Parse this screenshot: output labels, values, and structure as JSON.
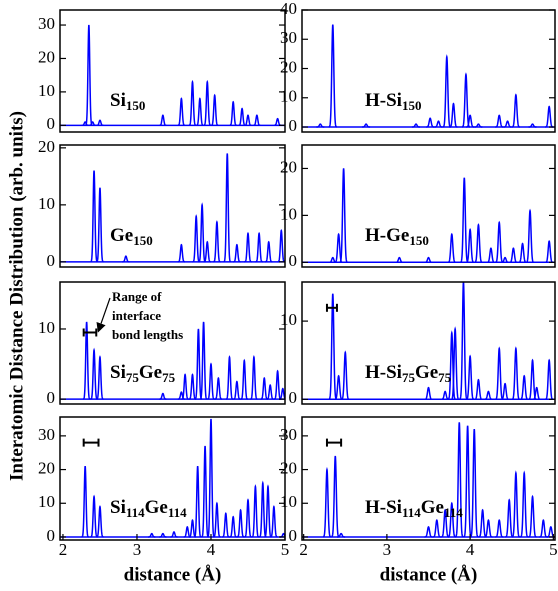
{
  "ylabel": "Interatomic Distance Distribution (arb. units)",
  "chart_data": [
    {
      "type": "peaks",
      "label": [
        "Si",
        "150"
      ],
      "color": "#0000ff",
      "x": [
        2.3,
        2.35,
        2.4,
        2.5,
        3.35,
        3.6,
        3.75,
        3.85,
        3.95,
        4.05,
        4.3,
        4.42,
        4.5,
        4.62,
        4.9
      ],
      "values": [
        1,
        30,
        1,
        1.5,
        3,
        8,
        13,
        8,
        13,
        9,
        7,
        5,
        3,
        3,
        2
      ],
      "xlim": [
        1.96,
        5.0
      ],
      "ylim": [
        -2,
        34.5
      ],
      "yticks": [
        0,
        10,
        20,
        30
      ]
    },
    {
      "type": "peaks",
      "label": [
        "H-Si",
        "150"
      ],
      "color": "#0000ff",
      "x": [
        2.2,
        2.35,
        2.75,
        3.35,
        3.52,
        3.62,
        3.72,
        3.8,
        3.95,
        4.0,
        4.1,
        4.35,
        4.45,
        4.55,
        4.75,
        4.95
      ],
      "values": [
        1,
        35,
        1,
        1,
        3,
        2,
        24,
        8,
        18,
        4,
        1,
        4,
        2,
        11,
        1,
        7
      ],
      "xlim": [
        1.98,
        5.02
      ],
      "ylim": [
        -1.7,
        40
      ],
      "yticks": [
        0,
        10,
        20,
        30,
        40
      ]
    },
    {
      "type": "peaks",
      "label": [
        "Ge",
        "150"
      ],
      "color": "#0000ff",
      "x": [
        2.42,
        2.5,
        2.85,
        3.6,
        3.8,
        3.88,
        3.95,
        4.08,
        4.22,
        4.35,
        4.5,
        4.65,
        4.78,
        4.95
      ],
      "values": [
        16,
        13,
        1,
        3,
        8,
        10,
        3.5,
        7,
        19,
        3,
        5,
        5,
        3.5,
        5.5
      ],
      "xlim": [
        1.96,
        5.0
      ],
      "ylim": [
        -0.9,
        20.5
      ],
      "yticks": [
        0,
        10,
        20
      ]
    },
    {
      "type": "peaks",
      "label": [
        "H-Ge",
        "150"
      ],
      "color": "#0000ff",
      "x": [
        2.35,
        2.42,
        2.48,
        3.15,
        3.5,
        3.78,
        3.93,
        4.0,
        4.1,
        4.25,
        4.35,
        4.42,
        4.52,
        4.63,
        4.72,
        4.95
      ],
      "values": [
        1,
        6,
        20,
        1,
        1,
        6,
        18,
        7,
        8,
        3,
        8.5,
        1,
        3,
        4,
        11,
        4.5
      ],
      "xlim": [
        1.98,
        5.02
      ],
      "ylim": [
        -1,
        25
      ],
      "yticks": [
        0,
        10,
        20
      ]
    },
    {
      "type": "peaks",
      "label": [
        "Si",
        "75",
        "Ge",
        "75"
      ],
      "color": "#0000ff",
      "x": [
        2.32,
        2.42,
        2.5,
        3.35,
        3.6,
        3.65,
        3.75,
        3.83,
        3.9,
        4.0,
        4.1,
        4.25,
        4.35,
        4.45,
        4.58,
        4.72,
        4.8,
        4.9,
        4.97
      ],
      "values": [
        11,
        7,
        6,
        0.8,
        1,
        3.5,
        3.5,
        10,
        11,
        5,
        3,
        6,
        2.5,
        5.5,
        6,
        3,
        2,
        4,
        1.5
      ],
      "xlim": [
        1.96,
        5.0
      ],
      "ylim": [
        -0.7,
        16.7
      ],
      "yticks": [
        0,
        10
      ],
      "range_bar": {
        "x": [
          2.28,
          2.45
        ],
        "y": 9.5
      },
      "annotation": [
        "Range of",
        "interface",
        "bond lengths"
      ]
    },
    {
      "type": "peaks",
      "label": [
        "H-Si",
        "75",
        "Ge",
        "75"
      ],
      "color": "#0000ff",
      "x": [
        2.35,
        2.42,
        2.5,
        3.5,
        3.7,
        3.78,
        3.82,
        3.92,
        4.0,
        4.1,
        4.22,
        4.35,
        4.42,
        4.55,
        4.65,
        4.75,
        4.8,
        4.95
      ],
      "values": [
        13.5,
        3,
        6,
        1.5,
        1,
        8.5,
        9,
        15,
        5.5,
        2.5,
        1,
        6.5,
        2,
        6.5,
        3,
        5,
        1.5,
        5
      ],
      "xlim": [
        1.98,
        5.02
      ],
      "ylim": [
        -0.6,
        15
      ],
      "yticks": [
        0,
        10
      ],
      "range_bar": {
        "x": [
          2.28,
          2.4
        ],
        "y": 11.7
      }
    },
    {
      "type": "peaks",
      "label": [
        "Si",
        "114",
        "Ge",
        "114"
      ],
      "color": "#0000ff",
      "x": [
        2.3,
        2.42,
        2.5,
        3.2,
        3.35,
        3.5,
        3.68,
        3.75,
        3.82,
        3.92,
        4.0,
        4.08,
        4.2,
        4.3,
        4.4,
        4.5,
        4.6,
        4.7,
        4.77,
        4.85,
        4.98
      ],
      "values": [
        21,
        12,
        9,
        1,
        1,
        1.5,
        3,
        5,
        21,
        27,
        35,
        10,
        7,
        6,
        8,
        11,
        15,
        16,
        15,
        9,
        1
      ],
      "xlim": [
        1.96,
        5.0
      ],
      "ylim": [
        -0.9,
        35.6
      ],
      "yticks": [
        0,
        10,
        20,
        30
      ],
      "xticks": [
        2,
        3,
        4,
        5
      ],
      "range_bar": {
        "x": [
          2.28,
          2.48
        ],
        "y": 28
      },
      "xlabel": "distance (Å)"
    },
    {
      "type": "peaks",
      "label": [
        "H-Si",
        "114",
        "Ge",
        "114"
      ],
      "color": "#0000ff",
      "x": [
        2.28,
        2.38,
        2.45,
        3.5,
        3.6,
        3.7,
        3.78,
        3.87,
        3.97,
        4.05,
        4.15,
        4.22,
        4.35,
        4.47,
        4.55,
        4.65,
        4.75,
        4.88,
        4.97
      ],
      "values": [
        20,
        24,
        1,
        3,
        5,
        8,
        10,
        34,
        33,
        32,
        8,
        5,
        5,
        11,
        19,
        19,
        12,
        5,
        3
      ],
      "xlim": [
        1.98,
        5.02
      ],
      "ylim": [
        -0.9,
        35.6
      ],
      "yticks": [
        0,
        10,
        20,
        30
      ],
      "xticks": [
        2,
        3,
        4,
        5
      ],
      "range_bar": {
        "x": [
          2.28,
          2.45
        ],
        "y": 28
      },
      "xlabel": "distance (Å)"
    }
  ]
}
